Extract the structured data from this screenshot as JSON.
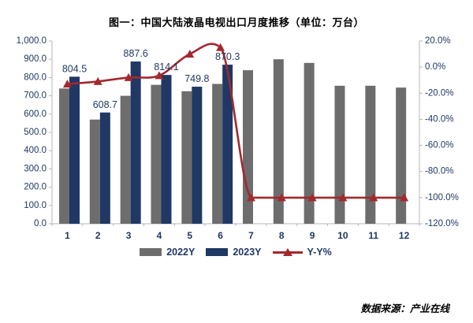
{
  "title": "图一：中国大陆液晶电视出口月度推移（单位：万台）",
  "source_note": "数据来源：产业在线",
  "colors": {
    "bar_2022": "#6d6d6d",
    "bar_2023": "#1f3864",
    "line_yy": "#a2292e",
    "axis_line": "#b7b7b7",
    "axis_text": "#1f3864",
    "data_label_text": "#1f3864",
    "title_text": "#000000"
  },
  "chart_data": {
    "type": "bar",
    "title": "图一：中国大陆液晶电视出口月度推移（单位：万台）",
    "categories": [
      "1",
      "2",
      "3",
      "4",
      "5",
      "6",
      "7",
      "8",
      "9",
      "10",
      "11",
      "12"
    ],
    "series": [
      {
        "name": "2022Y",
        "type": "bar",
        "axis": "left",
        "values": [
          740,
          570,
          700,
          760,
          725,
          765,
          840,
          900,
          880,
          755,
          755,
          745
        ]
      },
      {
        "name": "2023Y",
        "type": "bar",
        "axis": "left",
        "values": [
          804.5,
          608.7,
          887.6,
          814.1,
          749.8,
          870.3,
          null,
          null,
          null,
          null,
          null,
          null
        ],
        "data_labels": [
          "804.5",
          "608.7",
          "887.6",
          "814.1",
          "749.8",
          "870.3"
        ]
      },
      {
        "name": "Y-Y%",
        "type": "line",
        "axis": "right",
        "values": [
          -13,
          -11,
          -8,
          -6.5,
          10,
          15,
          -100,
          -100,
          -100,
          -100,
          -100,
          -100
        ]
      }
    ],
    "left_axis": {
      "min": 0,
      "max": 1000,
      "step": 100,
      "ticks": [
        "1,000.0",
        "900.0",
        "800.0",
        "700.0",
        "600.0",
        "500.0",
        "400.0",
        "300.0",
        "200.0",
        "100.0",
        "0.0"
      ]
    },
    "right_axis": {
      "min": -120,
      "max": 20,
      "step": 20,
      "ticks": [
        "20.0%",
        "0.0%",
        "-20.0%",
        "-40.0%",
        "-60.0%",
        "-80.0%",
        "-100.0%",
        "-120.0%"
      ]
    },
    "legend": [
      "2022Y",
      "2023Y",
      "Y-Y%"
    ],
    "legend_position": "bottom",
    "grid": false
  }
}
